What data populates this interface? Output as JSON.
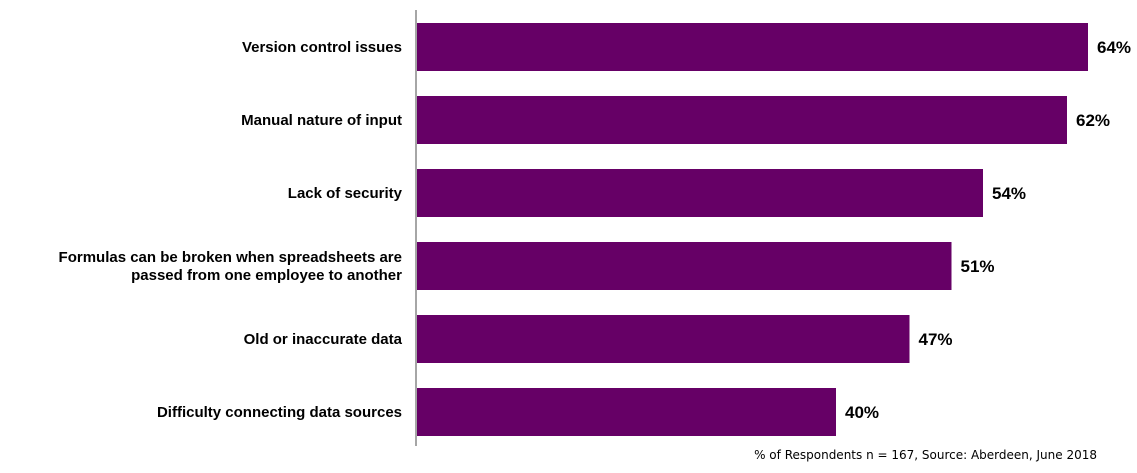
{
  "chart_data": {
    "type": "bar",
    "orientation": "horizontal",
    "categories": [
      [
        "Version control issues"
      ],
      [
        "Manual nature of input"
      ],
      [
        "Lack of security"
      ],
      [
        "Formulas can be broken when spreadsheets are",
        "passed from one employee to another"
      ],
      [
        "Old or inaccurate data"
      ],
      [
        "Difficulty connecting data sources"
      ]
    ],
    "values": [
      64,
      62,
      54,
      51,
      47,
      40
    ],
    "value_labels": [
      "64%",
      "62%",
      "54%",
      "51%",
      "47%",
      "40%"
    ],
    "xlim": [
      0,
      64
    ],
    "grid": false,
    "bar_color": "#660066",
    "axis_color": "#a6a6a6"
  },
  "footnote": "% of Respondents n = 167, Source: Aberdeen, June 2018"
}
